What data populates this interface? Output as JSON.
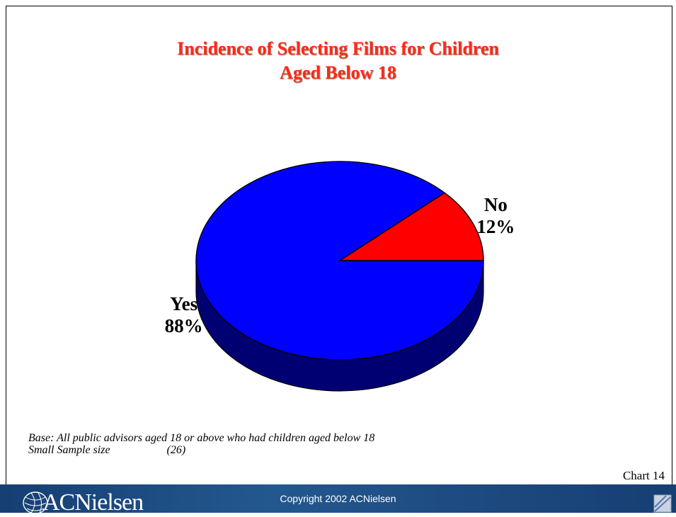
{
  "chart_data": {
    "type": "pie",
    "title_lines": [
      "Incidence of Selecting Films for Children",
      "Aged Below 18"
    ],
    "slices": [
      {
        "label": "No",
        "value": 12,
        "value_label": "12%",
        "color": "#ff0000"
      },
      {
        "label": "Yes",
        "value": 88,
        "value_label": "88%",
        "color": "#0000ff"
      }
    ],
    "style": "3d"
  },
  "footnote": {
    "base": "Base: All public advisors aged 18 or above who had children aged below 18",
    "sample_label": "Small Sample size",
    "sample_value": "(26)"
  },
  "chart_number": "Chart 14",
  "footer": {
    "logo": "ACNielsen",
    "copyright": "Copyright 2002 ACNielsen",
    "background": "#1d4a80"
  }
}
